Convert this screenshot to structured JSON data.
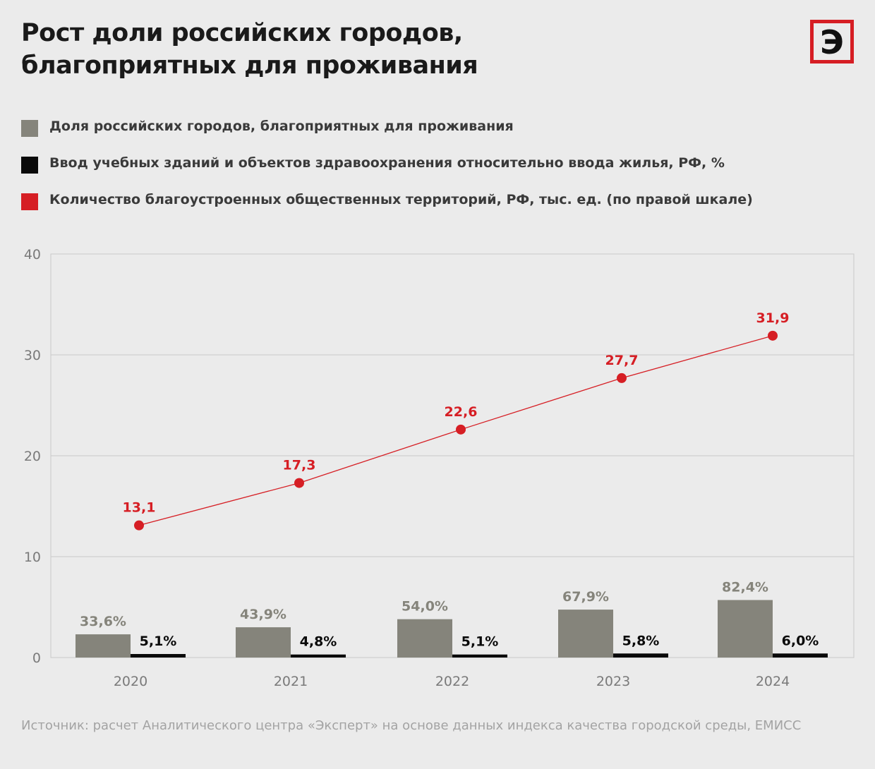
{
  "title": {
    "line1": "Рост доли российских городов,",
    "line2": "благоприятных для проживания"
  },
  "logo": {
    "glyph": "Э",
    "color": "#d61e24"
  },
  "colors": {
    "share": "#85847b",
    "education": "#0a0a0a",
    "territories": "#d61e24",
    "axis_text": "#7a7a7a",
    "grid": "#c9c9c9"
  },
  "legend": [
    {
      "label": "Доля российских городов, благоприятных для проживания",
      "color": "#85847b"
    },
    {
      "label": "Ввод учебных зданий и объектов здравоохранения относительно ввода жилья, РФ, %",
      "color": "#0a0a0a"
    },
    {
      "label": "Количество благоустроенных общественных территорий, РФ, тыс. ед. (по правой шкале)",
      "color": "#d61e24"
    }
  ],
  "chart_data": {
    "type": "bar",
    "categories": [
      "2020",
      "2021",
      "2022",
      "2023",
      "2024"
    ],
    "ylim": [
      0,
      40
    ],
    "yticks": [
      0,
      10,
      20,
      30,
      40
    ],
    "grid": true,
    "series": [
      {
        "name": "Доля российских городов, благоприятных для проживания",
        "type": "bar",
        "axis_value": [
          2.3,
          3.0,
          3.8,
          4.75,
          5.7
        ],
        "labels": [
          "33,6%",
          "43,9%",
          "54,0%",
          "67,9%",
          "82,4%"
        ]
      },
      {
        "name": "Ввод учебных зданий и объектов здравоохранения относительно ввода жилья, РФ, %",
        "type": "bar",
        "axis_value": [
          0.35,
          0.3,
          0.3,
          0.4,
          0.4
        ],
        "labels": [
          "5,1%",
          "4,8%",
          "5,1%",
          "5,8%",
          "6,0%"
        ]
      },
      {
        "name": "Количество благоустроенных общественных территорий, РФ, тыс. ед. (по правой шкале)",
        "type": "line",
        "values": [
          13.1,
          17.3,
          22.6,
          27.7,
          31.9
        ],
        "labels": [
          "13,1",
          "17,3",
          "22,6",
          "27,7",
          "31,9"
        ]
      }
    ]
  },
  "source": "Источник: расчет Аналитического центра «Эксперт» на основе данных индекса качества городской среды, ЕМИСС"
}
